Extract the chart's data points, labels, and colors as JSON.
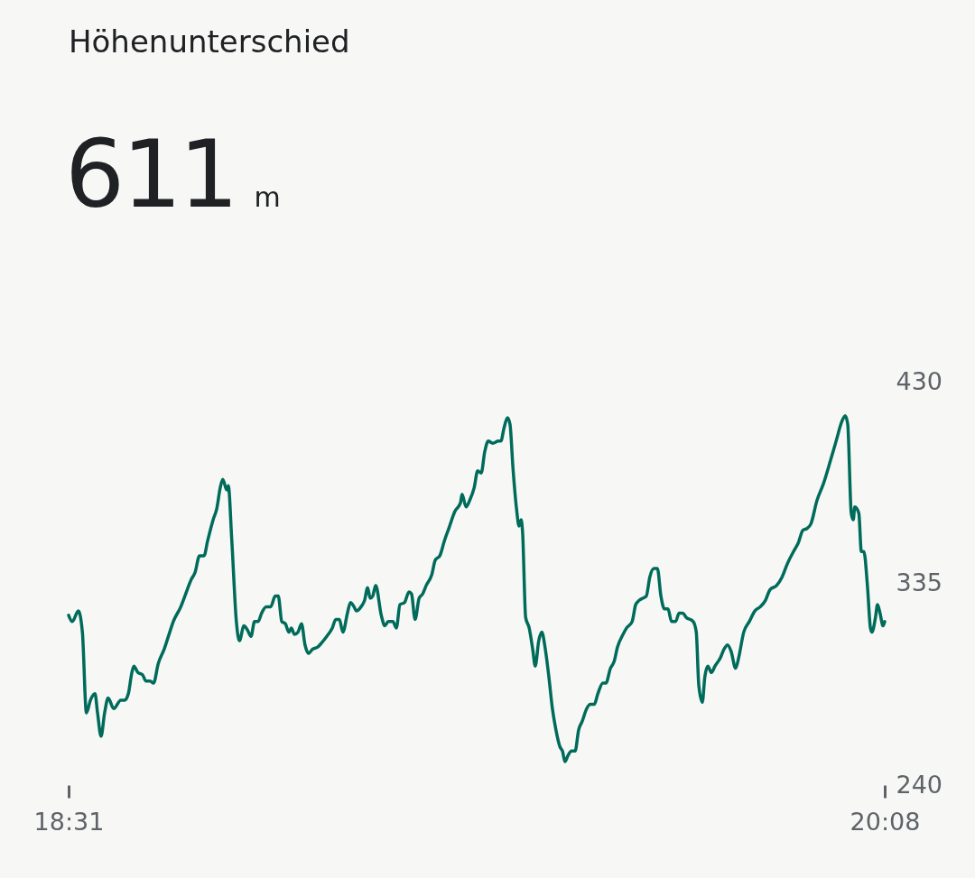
{
  "chart_data": {
    "type": "line",
    "title": "Höhenunterschied",
    "subtitle": "611 m",
    "xlim": [
      18.5167,
      20.1333
    ],
    "xticks": [
      {
        "value": 18.5167,
        "label": "18:31"
      },
      {
        "value": 20.1333,
        "label": "20:08"
      }
    ],
    "ylim": [
      240,
      430
    ],
    "yticks": [
      240,
      335,
      430
    ],
    "x": [
      18.5167,
      18.524,
      18.536,
      18.544,
      18.552,
      18.56,
      18.569,
      18.574,
      18.581,
      18.588,
      18.595,
      18.606,
      18.62,
      18.628,
      18.635,
      18.642,
      18.646,
      18.654,
      18.663,
      18.67,
      18.678,
      18.685,
      18.694,
      18.706,
      18.717,
      18.724,
      18.739,
      18.747,
      18.76,
      18.767,
      18.776,
      18.785,
      18.792,
      18.803,
      18.81,
      18.817,
      18.822,
      18.83,
      18.833,
      18.84,
      18.849,
      18.855,
      18.864,
      18.871,
      18.878,
      18.885,
      18.892,
      18.899,
      18.908,
      18.917,
      18.926,
      18.932,
      18.939,
      18.946,
      18.953,
      18.958,
      18.964,
      18.971,
      18.978,
      18.985,
      18.992,
      19.0,
      19.01,
      19.018,
      19.028,
      19.039,
      19.046,
      19.053,
      19.06,
      19.069,
      19.075,
      19.082,
      19.087,
      19.096,
      19.103,
      19.109,
      19.114,
      19.119,
      19.125,
      19.136,
      19.143,
      19.15,
      19.159,
      19.166,
      19.173,
      19.182,
      19.191,
      19.196,
      19.203,
      19.211,
      19.218,
      19.225,
      19.236,
      19.243,
      19.252,
      19.261,
      19.27,
      19.282,
      19.293,
      19.296,
      19.304,
      19.311,
      19.32,
      19.327,
      19.334,
      19.341,
      19.348,
      19.357,
      19.368,
      19.373,
      19.379,
      19.386,
      19.391,
      19.397,
      19.404,
      19.409,
      19.413,
      19.416,
      19.422,
      19.429,
      19.436,
      19.441,
      19.448,
      19.454,
      19.461,
      19.468,
      19.475,
      19.482,
      19.49,
      19.495,
      19.5,
      19.506,
      19.513,
      19.52,
      19.527,
      19.534,
      19.543,
      19.55,
      19.558,
      19.565,
      19.575,
      19.581,
      19.59,
      19.597,
      19.604,
      19.615,
      19.622,
      19.633,
      19.64,
      19.647,
      19.654,
      19.661,
      19.668,
      19.676,
      19.683,
      19.69,
      19.697,
      19.704,
      19.711,
      19.719,
      19.726,
      19.733,
      19.74,
      19.754,
      19.76,
      19.765,
      19.772,
      19.777,
      19.783,
      19.79,
      19.797,
      19.808,
      19.815,
      19.822,
      19.829,
      19.838,
      19.844,
      19.854,
      19.865,
      19.876,
      19.887,
      19.897,
      19.906,
      19.919,
      19.93,
      19.94,
      19.955,
      19.962,
      19.971,
      19.98,
      19.987,
      19.999,
      20.012,
      20.026,
      20.037,
      20.048,
      20.055,
      20.06,
      20.067,
      20.071,
      20.074,
      20.082,
      20.087,
      20.092,
      20.099,
      20.105,
      20.108,
      20.115,
      20.119,
      20.124,
      20.13,
      20.1333
    ],
    "series": [
      {
        "color": "#006b5a",
        "values": [
          320,
          317,
          322,
          312,
          274,
          280,
          283,
          274,
          263,
          274,
          281,
          276,
          280,
          280,
          283,
          293,
          296,
          293,
          292,
          289,
          289,
          288,
          297,
          304,
          312,
          317,
          324,
          329,
          337,
          340,
          348,
          348,
          355,
          365,
          370,
          380,
          384,
          379,
          381,
          355,
          317,
          308,
          315,
          313,
          310,
          317,
          317,
          321,
          324,
          324,
          329,
          329,
          317,
          316,
          312,
          314,
          311,
          312,
          316,
          306,
          302,
          304,
          305,
          307,
          310,
          314,
          318,
          318,
          312,
          321,
          326,
          324,
          322,
          324,
          327,
          333,
          328,
          329,
          334,
          320,
          315,
          317,
          317,
          314,
          325,
          326,
          331,
          330,
          318,
          328,
          330,
          334,
          339,
          346,
          348,
          355,
          361,
          369,
          373,
          377,
          371,
          374,
          380,
          388,
          387,
          397,
          402,
          401,
          402,
          402,
          408,
          413,
          410,
          389,
          370,
          362,
          365,
          359,
          319,
          314,
          304,
          296,
          308,
          312,
          304,
          291,
          276,
          266,
          258,
          256,
          251,
          254,
          256,
          256,
          266,
          270,
          276,
          278,
          278,
          283,
          288,
          288,
          295,
          298,
          305,
          311,
          314,
          317,
          325,
          327,
          328,
          329,
          338,
          342,
          342,
          329,
          323,
          323,
          317,
          317,
          321,
          321,
          319,
          317,
          312,
          287,
          279,
          291,
          296,
          293,
          296,
          300,
          304,
          306,
          303,
          295,
          300,
          312,
          317,
          322,
          324,
          327,
          332,
          334,
          338,
          344,
          351,
          354,
          360,
          361,
          363,
          374,
          382,
          393,
          402,
          411,
          414,
          410,
          368,
          365,
          371,
          368,
          350,
          350,
          334,
          314,
          312,
          319,
          325,
          321,
          315,
          317
        ]
      }
    ]
  }
}
